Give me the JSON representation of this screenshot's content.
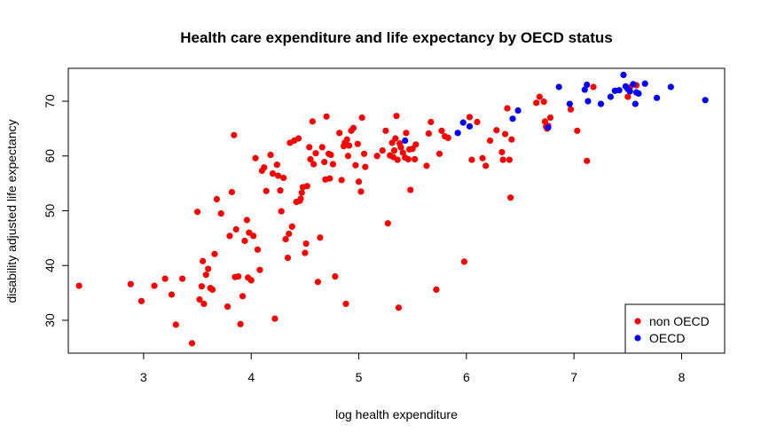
{
  "chart_data": {
    "type": "scatter",
    "title": "Health care expenditure and life expectancy by OECD status",
    "xlabel": "log health expenditure",
    "ylabel": "disability adjusted life expectancy",
    "xlim": [
      2.3,
      8.4
    ],
    "ylim": [
      24,
      76
    ],
    "xticks": [
      3,
      4,
      5,
      6,
      7,
      8
    ],
    "yticks": [
      30,
      40,
      50,
      60,
      70
    ],
    "grid": false,
    "legend_position": "bottom-right",
    "series": [
      {
        "name": "non OECD",
        "color": "#ff0000",
        "points": [
          [
            2.4,
            36.3
          ],
          [
            2.88,
            36.6
          ],
          [
            2.98,
            33.5
          ],
          [
            3.1,
            36.3
          ],
          [
            3.2,
            37.6
          ],
          [
            3.26,
            34.7
          ],
          [
            3.3,
            29.2
          ],
          [
            3.36,
            37.6
          ],
          [
            3.45,
            25.8
          ],
          [
            3.5,
            49.8
          ],
          [
            3.52,
            33.8
          ],
          [
            3.54,
            36.2
          ],
          [
            3.55,
            40.8
          ],
          [
            3.56,
            33.0
          ],
          [
            3.58,
            38.3
          ],
          [
            3.6,
            39.4
          ],
          [
            3.62,
            35.9
          ],
          [
            3.64,
            35.6
          ],
          [
            3.66,
            42.1
          ],
          [
            3.68,
            52.1
          ],
          [
            3.72,
            49.5
          ],
          [
            3.78,
            32.5
          ],
          [
            3.8,
            45.4
          ],
          [
            3.82,
            53.4
          ],
          [
            3.84,
            63.8
          ],
          [
            3.85,
            37.9
          ],
          [
            3.86,
            46.6
          ],
          [
            3.88,
            38.0
          ],
          [
            3.9,
            29.3
          ],
          [
            3.92,
            34.4
          ],
          [
            3.94,
            44.5
          ],
          [
            3.96,
            48.3
          ],
          [
            3.97,
            37.8
          ],
          [
            3.98,
            46.0
          ],
          [
            4.0,
            37.3
          ],
          [
            4.02,
            45.4
          ],
          [
            4.04,
            59.6
          ],
          [
            4.06,
            42.9
          ],
          [
            4.08,
            39.2
          ],
          [
            4.1,
            57.3
          ],
          [
            4.12,
            57.9
          ],
          [
            4.14,
            53.6
          ],
          [
            4.18,
            60.2
          ],
          [
            4.2,
            56.8
          ],
          [
            4.22,
            30.3
          ],
          [
            4.24,
            58.4
          ],
          [
            4.25,
            56.4
          ],
          [
            4.27,
            53.7
          ],
          [
            4.28,
            49.9
          ],
          [
            4.3,
            56.0
          ],
          [
            4.32,
            44.8
          ],
          [
            4.34,
            41.4
          ],
          [
            4.35,
            45.8
          ],
          [
            4.36,
            62.4
          ],
          [
            4.38,
            47.1
          ],
          [
            4.4,
            62.8
          ],
          [
            4.42,
            51.6
          ],
          [
            4.44,
            63.2
          ],
          [
            4.45,
            51.8
          ],
          [
            4.46,
            52.2
          ],
          [
            4.47,
            53.3
          ],
          [
            4.48,
            54.3
          ],
          [
            4.5,
            42.3
          ],
          [
            4.51,
            44.0
          ],
          [
            4.52,
            54.5
          ],
          [
            4.54,
            61.6
          ],
          [
            4.55,
            59.4
          ],
          [
            4.57,
            66.3
          ],
          [
            4.58,
            58.5
          ],
          [
            4.6,
            60.5
          ],
          [
            4.62,
            37.0
          ],
          [
            4.64,
            45.1
          ],
          [
            4.66,
            61.6
          ],
          [
            4.68,
            58.9
          ],
          [
            4.69,
            55.7
          ],
          [
            4.7,
            67.2
          ],
          [
            4.72,
            60.4
          ],
          [
            4.73,
            55.9
          ],
          [
            4.74,
            60.2
          ],
          [
            4.76,
            58.5
          ],
          [
            4.78,
            38.0
          ],
          [
            4.82,
            64.2
          ],
          [
            4.84,
            55.6
          ],
          [
            4.86,
            61.8
          ],
          [
            4.87,
            62.4
          ],
          [
            4.88,
            33.0
          ],
          [
            4.89,
            63.0
          ],
          [
            4.9,
            60.0
          ],
          [
            4.91,
            61.9
          ],
          [
            4.93,
            64.6
          ],
          [
            4.95,
            65.1
          ],
          [
            4.97,
            58.3
          ],
          [
            4.99,
            62.2
          ],
          [
            5.0,
            55.3
          ],
          [
            5.02,
            53.5
          ],
          [
            5.03,
            67.0
          ],
          [
            5.05,
            60.4
          ],
          [
            5.06,
            58.0
          ],
          [
            5.17,
            60.0
          ],
          [
            5.22,
            61.0
          ],
          [
            5.25,
            64.6
          ],
          [
            5.27,
            47.7
          ],
          [
            5.29,
            60.1
          ],
          [
            5.31,
            62.4
          ],
          [
            5.32,
            59.8
          ],
          [
            5.33,
            61.0
          ],
          [
            5.34,
            63.2
          ],
          [
            5.35,
            67.3
          ],
          [
            5.36,
            59.3
          ],
          [
            5.37,
            32.3
          ],
          [
            5.38,
            62.3
          ],
          [
            5.39,
            61.6
          ],
          [
            5.41,
            60.6
          ],
          [
            5.43,
            59.7
          ],
          [
            5.44,
            64.2
          ],
          [
            5.46,
            59.4
          ],
          [
            5.47,
            61.2
          ],
          [
            5.48,
            53.8
          ],
          [
            5.5,
            61.3
          ],
          [
            5.52,
            59.4
          ],
          [
            5.53,
            62.1
          ],
          [
            5.63,
            58.2
          ],
          [
            5.65,
            64.1
          ],
          [
            5.67,
            66.2
          ],
          [
            5.72,
            35.6
          ],
          [
            5.75,
            60.4
          ],
          [
            5.77,
            64.6
          ],
          [
            5.8,
            63.6
          ],
          [
            5.83,
            63.3
          ],
          [
            5.98,
            40.7
          ],
          [
            6.03,
            67.1
          ],
          [
            6.05,
            59.3
          ],
          [
            6.1,
            66.2
          ],
          [
            6.15,
            59.6
          ],
          [
            6.18,
            58.2
          ],
          [
            6.22,
            62.8
          ],
          [
            6.28,
            64.7
          ],
          [
            6.33,
            60.7
          ],
          [
            6.34,
            59.3
          ],
          [
            6.36,
            64.0
          ],
          [
            6.38,
            68.7
          ],
          [
            6.4,
            59.3
          ],
          [
            6.41,
            52.4
          ],
          [
            6.42,
            63.0
          ],
          [
            6.65,
            69.7
          ],
          [
            6.68,
            70.8
          ],
          [
            6.72,
            69.9
          ],
          [
            6.73,
            66.3
          ],
          [
            6.74,
            65.4
          ],
          [
            6.75,
            65.0
          ],
          [
            6.76,
            65.5
          ],
          [
            6.78,
            67.0
          ],
          [
            6.97,
            68.5
          ],
          [
            7.03,
            64.6
          ],
          [
            7.12,
            59.1
          ],
          [
            7.18,
            72.6
          ],
          [
            7.5,
            70.8
          ],
          [
            7.52,
            72.5
          ],
          [
            7.58,
            72.9
          ]
        ]
      },
      {
        "name": "OECD",
        "color": "#0000ff",
        "points": [
          [
            5.43,
            62.8
          ],
          [
            5.92,
            64.2
          ],
          [
            5.97,
            66.1
          ],
          [
            6.03,
            65.4
          ],
          [
            6.43,
            66.8
          ],
          [
            6.48,
            68.3
          ],
          [
            6.76,
            65.2
          ],
          [
            6.86,
            72.6
          ],
          [
            6.96,
            69.5
          ],
          [
            7.1,
            72.1
          ],
          [
            7.12,
            73.0
          ],
          [
            7.13,
            70.0
          ],
          [
            7.25,
            69.5
          ],
          [
            7.34,
            70.8
          ],
          [
            7.38,
            71.9
          ],
          [
            7.42,
            72.0
          ],
          [
            7.46,
            74.8
          ],
          [
            7.48,
            72.7
          ],
          [
            7.5,
            72.2
          ],
          [
            7.52,
            71.8
          ],
          [
            7.55,
            73.1
          ],
          [
            7.57,
            69.5
          ],
          [
            7.58,
            71.6
          ],
          [
            7.6,
            71.4
          ],
          [
            7.66,
            73.2
          ],
          [
            7.77,
            70.6
          ],
          [
            7.9,
            72.6
          ],
          [
            8.22,
            70.2
          ]
        ]
      }
    ]
  }
}
